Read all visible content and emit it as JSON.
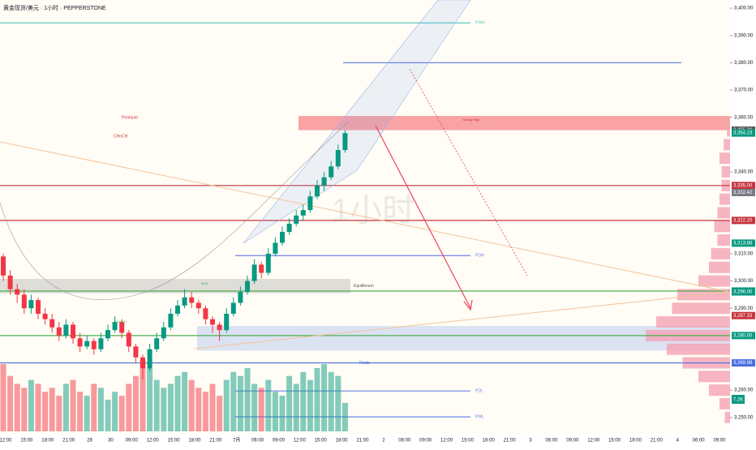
{
  "chart_data": {
    "type": "candlestick",
    "title": "黄金现货/美元 · 1小时 · PEPPERSTONE",
    "watermark": "1小时",
    "ylim": [
      3244,
      3403
    ],
    "yticks": [
      {
        "value": 3400,
        "label": "3,400.00"
      },
      {
        "value": 3390,
        "label": "3,390.00"
      },
      {
        "value": 3380,
        "label": "3,380.00"
      },
      {
        "value": 3370,
        "label": "3,370.00"
      },
      {
        "value": 3360,
        "label": "3,360.00"
      },
      {
        "value": 3340,
        "label": "3,340.00"
      },
      {
        "value": 3310,
        "label": "3,310.00"
      },
      {
        "value": 3300,
        "label": "3,300.00"
      },
      {
        "value": 3290,
        "label": "3,290.00"
      },
      {
        "value": 3260,
        "label": "3,260.00"
      },
      {
        "value": 3250,
        "label": "3,250.00"
      }
    ],
    "x_labels": [
      "12:00",
      "15:00",
      "18:00",
      "21:00",
      "28",
      "30",
      "09:00",
      "12:00",
      "15:00",
      "18:00",
      "21:00",
      "7月",
      "06:00",
      "09:00",
      "12:00",
      "15:00",
      "18:00",
      "21:00",
      "2",
      "06:00",
      "09:00",
      "12:00",
      "15:00",
      "18:00",
      "21:00",
      "3",
      "06:00",
      "09:00",
      "12:00",
      "15:00",
      "18:00",
      "21:00",
      "4",
      "06:00",
      "09:00"
    ],
    "up_color": "#089981",
    "down_color": "#f23645",
    "candles": [
      [
        3309,
        3310,
        3300,
        3302
      ],
      [
        3302,
        3304,
        3295,
        3297
      ],
      [
        3297,
        3299,
        3292,
        3295
      ],
      [
        3295,
        3297,
        3288,
        3290
      ],
      [
        3290,
        3295,
        3288,
        3293
      ],
      [
        3293,
        3294,
        3286,
        3288
      ],
      [
        3288,
        3290,
        3284,
        3286
      ],
      [
        3286,
        3288,
        3281,
        3283
      ],
      [
        3283,
        3285,
        3278,
        3280
      ],
      [
        3280,
        3286,
        3279,
        3284
      ],
      [
        3284,
        3285,
        3277,
        3279
      ],
      [
        3279,
        3281,
        3274,
        3276
      ],
      [
        3276,
        3280,
        3275,
        3278
      ],
      [
        3278,
        3279,
        3273,
        3275
      ],
      [
        3275,
        3281,
        3274,
        3279
      ],
      [
        3279,
        3284,
        3278,
        3282
      ],
      [
        3282,
        3287,
        3281,
        3285
      ],
      [
        3285,
        3286,
        3279,
        3281
      ],
      [
        3281,
        3282,
        3274,
        3276
      ],
      [
        3276,
        3277,
        3270,
        3272
      ],
      [
        3272,
        3273,
        3264,
        3268
      ],
      [
        3268,
        3277,
        3267,
        3275
      ],
      [
        3275,
        3281,
        3274,
        3279
      ],
      [
        3279,
        3285,
        3278,
        3283
      ],
      [
        3283,
        3290,
        3282,
        3288
      ],
      [
        3288,
        3293,
        3287,
        3291
      ],
      [
        3291,
        3297,
        3290,
        3294
      ],
      [
        3294,
        3296,
        3290,
        3292
      ],
      [
        3292,
        3293,
        3288,
        3290
      ],
      [
        3290,
        3291,
        3284,
        3286
      ],
      [
        3286,
        3287,
        3281,
        3284
      ],
      [
        3284,
        3285,
        3278,
        3282
      ],
      [
        3282,
        3290,
        3281,
        3288
      ],
      [
        3288,
        3294,
        3287,
        3292
      ],
      [
        3292,
        3298,
        3291,
        3296
      ],
      [
        3296,
        3302,
        3295,
        3300
      ],
      [
        3300,
        3308,
        3299,
        3306
      ],
      [
        3306,
        3307,
        3301,
        3303
      ],
      [
        3303,
        3312,
        3302,
        3310
      ],
      [
        3310,
        3316,
        3309,
        3314
      ],
      [
        3314,
        3320,
        3313,
        3318
      ],
      [
        3318,
        3323,
        3317,
        3321
      ],
      [
        3321,
        3326,
        3320,
        3324
      ],
      [
        3324,
        3328,
        3322,
        3326
      ],
      [
        3326,
        3333,
        3325,
        3331
      ],
      [
        3331,
        3337,
        3330,
        3335
      ],
      [
        3335,
        3340,
        3333,
        3338
      ],
      [
        3338,
        3344,
        3337,
        3342
      ],
      [
        3342,
        3350,
        3341,
        3348
      ],
      [
        3348,
        3355.3,
        3347,
        3354.2
      ]
    ],
    "volume": [
      17,
      14,
      12,
      11,
      13,
      12,
      10,
      11,
      9,
      12,
      13,
      10,
      9,
      12,
      11,
      8,
      10,
      9,
      12,
      14,
      18,
      16,
      13,
      11,
      12,
      14,
      15,
      13,
      11,
      10,
      12,
      9,
      13,
      15,
      14,
      16,
      12,
      11,
      13,
      10,
      9,
      14,
      12,
      15,
      13,
      16,
      17,
      15,
      14,
      7.2
    ],
    "vol_ylim": [
      0,
      25
    ],
    "profile": {
      "color": "#f5a3b5",
      "prices": [
        3250,
        3255,
        3260,
        3265,
        3270,
        3275,
        3280,
        3285,
        3290,
        3295,
        3300,
        3305,
        3310,
        3315,
        3320,
        3325,
        3330,
        3335,
        3340,
        3345,
        3350,
        3355
      ],
      "values": [
        5,
        10,
        20,
        30,
        45,
        60,
        80,
        70,
        55,
        50,
        30,
        20,
        18,
        12,
        15,
        12,
        10,
        8,
        8,
        10,
        6,
        3
      ]
    },
    "levels": [
      {
        "label": "PWH",
        "value": 3394.6,
        "color": "#5ec9c0"
      },
      {
        "value": 3380,
        "color": "#6f83e6"
      },
      {
        "label": "PDH",
        "value": 3309.3,
        "color": "#6f83e6"
      },
      {
        "label": "Rinda",
        "value": 3269.98,
        "color": "#4a6ee0"
      },
      {
        "label": "PDL",
        "value": 3259.7,
        "color": "#6f83e6"
      },
      {
        "label": "PWL",
        "value": 3250.2,
        "color": "#6f83e6"
      },
      {
        "value": 3335,
        "color": "#c8323c"
      },
      {
        "value": 3322.2,
        "color": "#c8323c"
      },
      {
        "value": 3296.3,
        "color": "#4caf50"
      },
      {
        "value": 3280,
        "color": "#4caf50"
      }
    ],
    "zones": [
      {
        "label": "Premium",
        "range": [
          3355.3,
          3360.5
        ],
        "color": "rgba(242,54,69,0.45)"
      },
      {
        "label": "Equilibrium",
        "range": [
          3295.5,
          3300.8
        ],
        "color": "rgba(150,150,150,0.3)"
      },
      {
        "range": [
          3274.5,
          3283.5
        ],
        "color": "rgba(90,130,230,0.22)"
      }
    ],
    "badges": [
      {
        "label": "3,355.30",
        "value": 3355.3,
        "color": "#555555"
      },
      {
        "label": "3,354.29",
        "value": 3354.29,
        "color": "#089981"
      },
      {
        "label": "3,354.23",
        "value": 3354.23,
        "color": "#089981"
      },
      {
        "label": "3,335.00",
        "value": 3335,
        "color": "#c8323c"
      },
      {
        "label": "3,332.42",
        "value": 3332.42,
        "color": "#787b86"
      },
      {
        "label": "3,322.20",
        "value": 3322.2,
        "color": "#c8323c"
      },
      {
        "label": "3,313.88",
        "value": 3313.88,
        "color": "#089981"
      },
      {
        "label": "3,296.33",
        "value": 3296.33,
        "color": "#089981"
      },
      {
        "label": "3,296.00",
        "value": 3296,
        "color": "#089981"
      },
      {
        "label": "3,287.33",
        "value": 3287.33,
        "color": "#c8323c"
      },
      {
        "label": "3,280.00",
        "value": 3280,
        "color": "#089981"
      },
      {
        "label": "3,269.98",
        "value": 3269.98,
        "color": "#4a6ee0"
      }
    ],
    "countdown": "33:49",
    "volume_badge": "7.2K",
    "annotations": [
      "CHoCH",
      "Strong High",
      "BOS",
      "CHoCH"
    ]
  }
}
